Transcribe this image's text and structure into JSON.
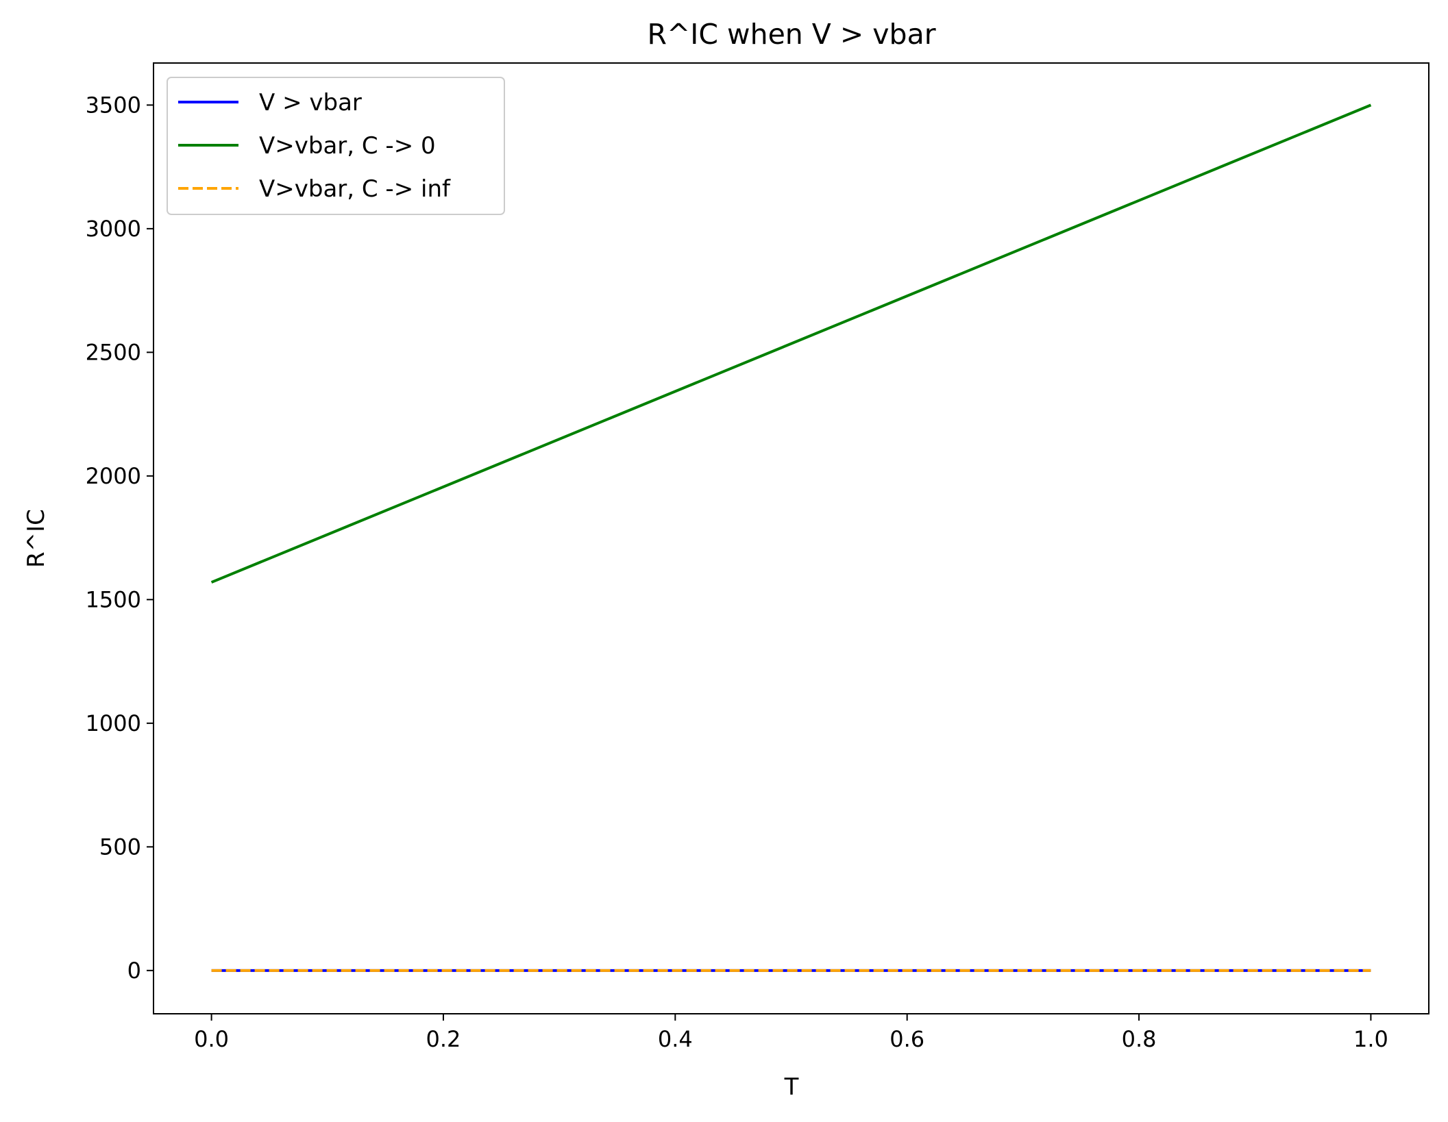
{
  "chart_data": {
    "type": "line",
    "title": "R^IC when V > vbar",
    "xlabel": "T",
    "ylabel": "R^IC",
    "xlim": [
      -0.05,
      1.05
    ],
    "ylim": [
      -175,
      3670
    ],
    "x_ticks": [
      0.0,
      0.2,
      0.4,
      0.6,
      0.8,
      1.0
    ],
    "x_tick_labels": [
      "0.0",
      "0.2",
      "0.4",
      "0.6",
      "0.8",
      "1.0"
    ],
    "y_ticks": [
      0,
      500,
      1000,
      1500,
      2000,
      2500,
      3000,
      3500
    ],
    "y_tick_labels": [
      "0",
      "500",
      "1000",
      "1500",
      "2000",
      "2500",
      "3000",
      "3500"
    ],
    "grid": false,
    "legend_position": "top-left",
    "series": [
      {
        "name": "V > vbar",
        "color": "#0000ff",
        "style": "solid",
        "x": [
          0.0,
          1.0
        ],
        "y": [
          0,
          0
        ]
      },
      {
        "name": "V>vbar, C -> 0",
        "color": "#008000",
        "style": "solid",
        "x": [
          0.0,
          1.0
        ],
        "y": [
          1570,
          3500
        ]
      },
      {
        "name": "V>vbar, C -> inf",
        "color": "#ffa500",
        "style": "dashed",
        "x": [
          0.0,
          1.0
        ],
        "y": [
          0,
          0
        ]
      }
    ]
  }
}
